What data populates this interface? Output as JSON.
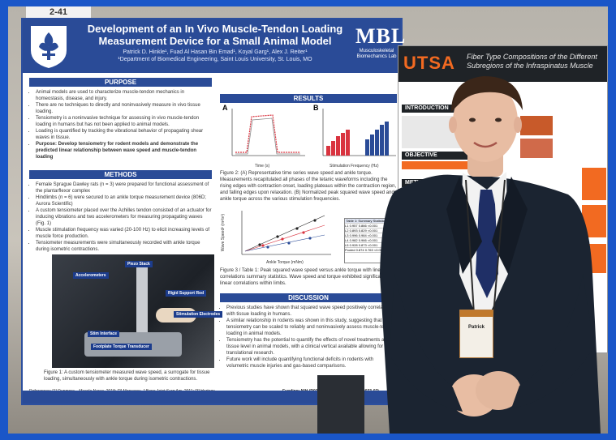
{
  "booth": {
    "number": "2-41"
  },
  "poster_left": {
    "title": "Development of an In Vivo Muscle-Tendon Loading Measurement Device for a Small Animal Model",
    "authors": "Patrick D. Hinkle¹, Fuad Al Hasan Bin Emad¹, Koyal Garg¹, Alex J. Reiter¹",
    "affiliation": "¹Department of Biomedical Engineering, Saint Louis University, St. Louis, MO",
    "lab_logo": "MBL",
    "lab_name": "Musculoskeletal Biomechanics Lab",
    "sections": {
      "purpose": "PURPOSE",
      "methods": "METHODS",
      "results": "RESULTS",
      "discussion": "DISCUSSION"
    },
    "purpose_bullets": [
      "Animal models are used to characterize muscle-tendon mechanics in homeostasis, disease, and injury.",
      "There are no techniques to directly and noninvasively measure in vivo tissue loading.",
      "Tensiometry is a noninvasive technique for assessing in vivo muscle-tendon loading in humans but has not been applied to animal models.",
      "Loading is quantified by tracking the vibrational behavior of propagating shear waves in tissue."
    ],
    "purpose_statement": "Purpose: Develop tensiometry for rodent models and demonstrate the predicted linear relationship between wave speed and muscle-tendon loading",
    "methods_bullets": [
      "Female Sprague Dawley rats (n = 3) were prepared for functional assessment of the plantarflexor complex",
      "Hindlimbs (n = 6) were secured to an ankle torque measurement device (806D; Aurora Scientific)",
      "A custom tensiometer placed over the Achilles tendon consisted of an actuator for inducing vibrations and two accelerometers for measuring propagating waves (Fig. 1)",
      "Muscle stimulation frequency was varied (20-100 Hz) to elicit increasing levels of muscle force production.",
      "Tensiometer measurements were simultaneously recorded with ankle torque during isometric contractions."
    ],
    "photo_labels": [
      "Piezo Stack",
      "Accelerometers",
      "Rigid Support Rod",
      "Stimulation Electrodes",
      "Stim Interface",
      "Footplate Torque Transducer"
    ],
    "figure1_caption": "Figure 1: A custom tensiometer measured wave speed, a surrogate for tissue loading, simultaneously with ankle torque during isometric contractions.",
    "figure2_caption": "Figure 2: (A) Representative time series wave speed and ankle torque. Measurements recapitulated all phases of the tetanic waveforms including the rising edges with contraction onset, loading plateaus within the contraction region, and falling edges upon relaxation. (B) Normalized peak squared wave speed and ankle torque across the various stimulation frequencies.",
    "figure3_caption": "Figure 3 / Table 1: Peak squared wave speed versus ankle torque with linear correlations summary statistics. Wave speed and torque exhibited significant linear correlations within limbs.",
    "table_title": "Table 1: Summary Statistics",
    "table_rows": [
      [
        "L1",
        "0.957",
        "0.866",
        "<0.001"
      ],
      [
        "L2",
        "0.893",
        "0.829",
        "<0.001"
      ],
      [
        "L3",
        "0.996",
        "0.984",
        "<0.001"
      ],
      [
        "L4",
        "0.982",
        "0.966",
        "<0.001"
      ],
      [
        "L5",
        "0.928",
        "0.873",
        "<0.001"
      ],
      [
        "Pooled",
        "0.874",
        "0.763",
        "<0.001"
      ]
    ],
    "discussion_bullets": [
      "Previous studies have shown that squared wave speed positively correlates with tissue loading in humans.",
      "A similar relationship in rodents was shown in this study, suggesting that tensiometry can be scaled to reliably and noninvasively assess muscle-tendon loading in animal models.",
      "Tensiometry has the potential to quantify the effects of novel treatments at the tissue level in animal models, with a clinical vertical available allowing for translational research.",
      "Future work will include quantifying functional deficits in rodents with volumetric muscle injuries and gas-based comparisons."
    ],
    "references": "References: [1] Dunmore... Muscle Nerve, 2018; [2] Mansaray, J Bone Joint Surg Am, 2011; [3] Hertogs...",
    "funding": "Funding: NIH (R03HD133731 and HK10SR2023-02)",
    "axis_labels": {
      "a_x": "Time (s)",
      "b_x": "Stimulation Frequency (Hz)",
      "scatter_x": "Ankle Torque (mNm)",
      "scatter_y": "Wave Speed² (m²/s²)"
    },
    "panel_letters": [
      "A",
      "B"
    ]
  },
  "poster_right": {
    "logo": "UTSA",
    "title": "Fiber Type Compositions of the Different Subregions of the Infraspinatus Muscle",
    "sections": [
      "INTRODUCTION",
      "OBJECTIVE",
      "METHODS"
    ]
  },
  "person": {
    "badge_text": "Patrick"
  },
  "colors": {
    "frame": "#1a56c8",
    "poster_blue": "#2a4b97",
    "utsa_orange": "#f26a21",
    "suit": "#1b2431"
  }
}
